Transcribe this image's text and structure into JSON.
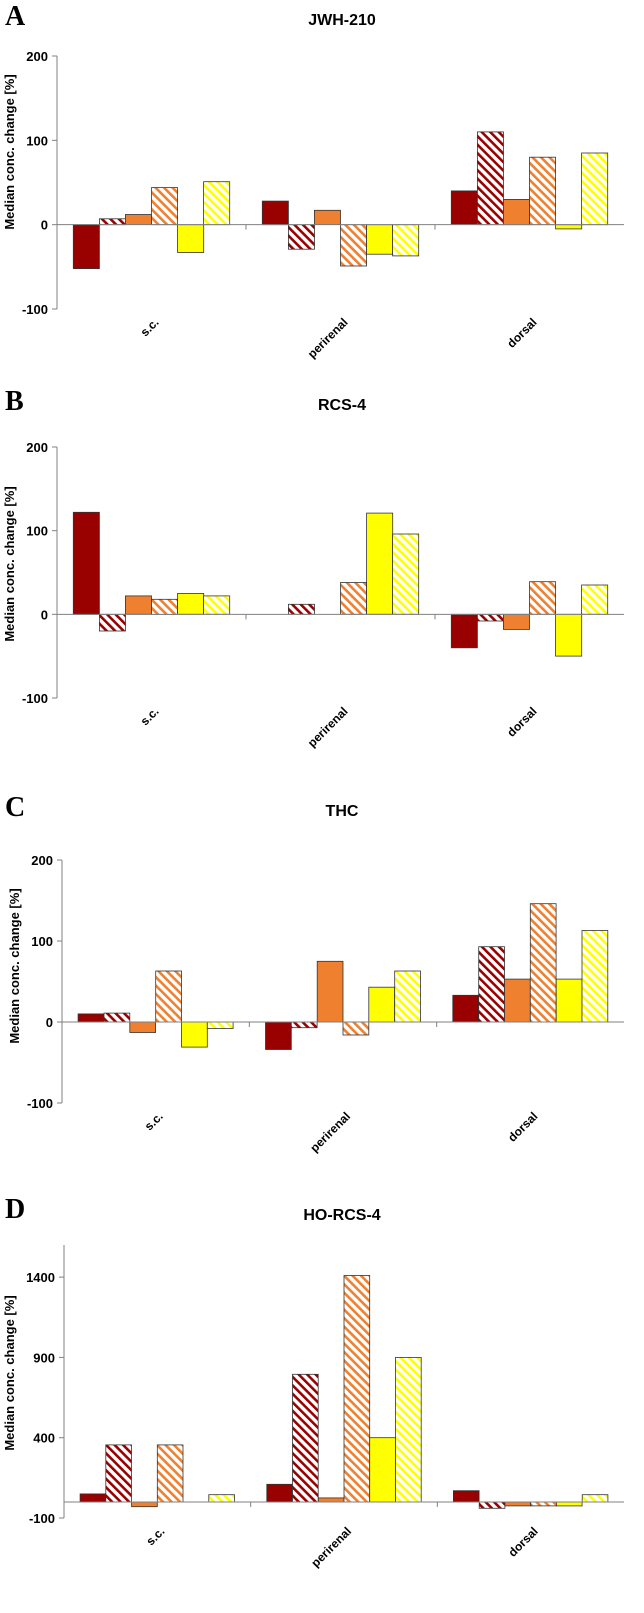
{
  "colors": {
    "dark_red": "#990000",
    "orange": "#ee8030",
    "yellow": "#ffff00",
    "outline": "#333333"
  },
  "series_styles": [
    {
      "color": "#990000",
      "hatched": false
    },
    {
      "color": "#990000",
      "hatched": true
    },
    {
      "color": "#ee8030",
      "hatched": false
    },
    {
      "color": "#ee8030",
      "hatched": true
    },
    {
      "color": "#ffff00",
      "hatched": false
    },
    {
      "color": "#ffff00",
      "hatched": true
    }
  ],
  "chart_data": [
    {
      "type": "bar",
      "panel": "A",
      "title": "JWH-210",
      "ylabel": "Median conc. change [%]",
      "categories": [
        "s.c.",
        "perirenal",
        "dorsal"
      ],
      "ylim": [
        -100,
        200
      ],
      "yticks": [
        "200",
        "100",
        "0",
        "-100"
      ],
      "ytick_values": [
        200,
        100,
        0,
        -100
      ],
      "values": [
        [
          -52,
          7,
          12,
          44,
          -33,
          51
        ],
        [
          28,
          -29,
          17,
          -49,
          -35,
          -37
        ],
        [
          40,
          110,
          30,
          80,
          -5,
          85
        ]
      ]
    },
    {
      "type": "bar",
      "panel": "B",
      "title": "RCS-4",
      "ylabel": "Median conc. change [%]",
      "categories": [
        "s.c.",
        "perirenal",
        "dorsal"
      ],
      "ylim": [
        -100,
        200
      ],
      "yticks": [
        "200",
        "100",
        "0",
        "-100"
      ],
      "ytick_values": [
        200,
        100,
        0,
        -100
      ],
      "values": [
        [
          122,
          -20,
          22,
          18,
          25,
          22
        ],
        [
          0,
          12,
          0,
          38,
          121,
          96
        ],
        [
          -40,
          -8,
          -18,
          39,
          -50,
          35
        ]
      ]
    },
    {
      "type": "bar",
      "panel": "C",
      "title": "THC",
      "ylabel": "Median conc. change [%]",
      "categories": [
        "s.c.",
        "perirenal",
        "dorsal"
      ],
      "ylim": [
        -100,
        200
      ],
      "yticks": [
        "200",
        "100",
        "0",
        "-100"
      ],
      "ytick_values": [
        200,
        100,
        0,
        -100
      ],
      "values": [
        [
          10,
          11,
          -13,
          63,
          -31,
          -8
        ],
        [
          -34,
          -7,
          75,
          -16,
          43,
          63
        ],
        [
          33,
          93,
          53,
          146,
          53,
          113
        ]
      ]
    },
    {
      "type": "bar",
      "panel": "D",
      "title": "HO-RCS-4",
      "ylabel": "Median conc. change [%]",
      "categories": [
        "s.c.",
        "perirenal",
        "dorsal"
      ],
      "ylim": [
        -100,
        1600
      ],
      "yticks": [
        "1400",
        "900",
        "400",
        "-100"
      ],
      "ytick_values": [
        1400,
        900,
        400,
        -100
      ],
      "values": [
        [
          50,
          355,
          -30,
          355,
          0,
          45
        ],
        [
          110,
          795,
          25,
          1410,
          400,
          900
        ],
        [
          70,
          -40,
          -25,
          -25,
          -25,
          45
        ]
      ]
    }
  ]
}
